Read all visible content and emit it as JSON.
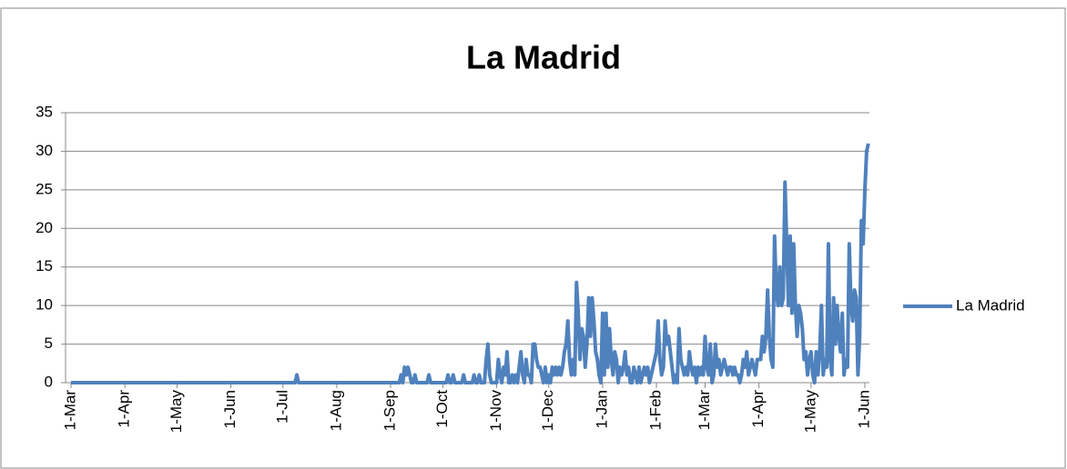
{
  "chart_data": {
    "type": "line",
    "title": "La Madrid",
    "categories": [
      "1-Mar",
      null,
      null,
      null,
      null,
      null,
      null,
      null,
      null,
      null,
      null,
      null,
      null,
      null,
      null,
      null,
      null,
      null,
      null,
      null,
      null,
      null,
      null,
      null,
      null,
      null,
      null,
      null,
      null,
      null,
      null,
      "1-Apr",
      null,
      null,
      null,
      null,
      null,
      null,
      null,
      null,
      null,
      null,
      null,
      null,
      null,
      null,
      null,
      null,
      null,
      null,
      null,
      null,
      null,
      null,
      null,
      null,
      null,
      null,
      null,
      null,
      null,
      "1-May",
      null,
      null,
      null,
      null,
      null,
      null,
      null,
      null,
      null,
      null,
      null,
      null,
      null,
      null,
      null,
      null,
      null,
      null,
      null,
      null,
      null,
      null,
      null,
      null,
      null,
      null,
      null,
      null,
      null,
      null,
      "1-Jun",
      null,
      null,
      null,
      null,
      null,
      null,
      null,
      null,
      null,
      null,
      null,
      null,
      null,
      null,
      null,
      null,
      null,
      null,
      null,
      null,
      null,
      null,
      null,
      null,
      null,
      null,
      null,
      null,
      null,
      "1-Jul",
      null,
      null,
      null,
      null,
      null,
      null,
      null,
      null,
      null,
      null,
      null,
      null,
      null,
      null,
      null,
      null,
      null,
      null,
      null,
      null,
      null,
      null,
      null,
      null,
      null,
      null,
      null,
      null,
      null,
      null,
      "1-Aug",
      null,
      null,
      null,
      null,
      null,
      null,
      null,
      null,
      null,
      null,
      null,
      null,
      null,
      null,
      null,
      null,
      null,
      null,
      null,
      null,
      null,
      null,
      null,
      null,
      null,
      null,
      null,
      null,
      null,
      null,
      "1-Sep",
      null,
      null,
      null,
      null,
      null,
      null,
      null,
      null,
      null,
      null,
      null,
      null,
      null,
      null,
      null,
      null,
      null,
      null,
      null,
      null,
      null,
      null,
      null,
      null,
      null,
      null,
      null,
      null,
      null,
      "1-Oct",
      null,
      null,
      null,
      null,
      null,
      null,
      null,
      null,
      null,
      null,
      null,
      null,
      null,
      null,
      null,
      null,
      null,
      null,
      null,
      null,
      null,
      null,
      null,
      null,
      null,
      null,
      null,
      null,
      null,
      null,
      "1-Nov",
      null,
      null,
      null,
      null,
      null,
      null,
      null,
      null,
      null,
      null,
      null,
      null,
      null,
      null,
      null,
      null,
      null,
      null,
      null,
      null,
      null,
      null,
      null,
      null,
      null,
      null,
      null,
      null,
      null,
      "1-Dec",
      null,
      null,
      null,
      null,
      null,
      null,
      null,
      null,
      null,
      null,
      null,
      null,
      null,
      null,
      null,
      null,
      null,
      null,
      null,
      null,
      null,
      null,
      null,
      null,
      null,
      null,
      null,
      null,
      null,
      null,
      "1-Jan",
      null,
      null,
      null,
      null,
      null,
      null,
      null,
      null,
      null,
      null,
      null,
      null,
      null,
      null,
      null,
      null,
      null,
      null,
      null,
      null,
      null,
      null,
      null,
      null,
      null,
      null,
      null,
      null,
      null,
      null,
      "1-Feb",
      null,
      null,
      null,
      null,
      null,
      null,
      null,
      null,
      null,
      null,
      null,
      null,
      null,
      null,
      null,
      null,
      null,
      null,
      null,
      null,
      null,
      null,
      null,
      null,
      null,
      null,
      null,
      "1-Mar",
      null,
      null,
      null,
      null,
      null,
      null,
      null,
      null,
      null,
      null,
      null,
      null,
      null,
      null,
      null,
      null,
      null,
      null,
      null,
      null,
      null,
      null,
      null,
      null,
      null,
      null,
      null,
      null,
      null,
      null,
      "1-Apr",
      null,
      null,
      null,
      null,
      null,
      null,
      null,
      null,
      null,
      null,
      null,
      null,
      null,
      null,
      null,
      null,
      null,
      null,
      null,
      null,
      null,
      null,
      null,
      null,
      null,
      null,
      null,
      null,
      null,
      "1-May",
      null,
      null,
      null,
      null,
      null,
      null,
      null,
      null,
      null,
      null,
      null,
      null,
      null,
      null,
      null,
      null,
      null,
      null,
      null,
      null,
      null,
      null,
      null,
      null,
      null,
      null,
      null,
      null,
      null,
      null,
      "1-Jun",
      null,
      null
    ],
    "series": [
      {
        "name": "La Madrid",
        "color": "#4f81bd",
        "values": [
          0,
          0,
          0,
          0,
          0,
          0,
          0,
          0,
          0,
          0,
          0,
          0,
          0,
          0,
          0,
          0,
          0,
          0,
          0,
          0,
          0,
          0,
          0,
          0,
          0,
          0,
          0,
          0,
          0,
          0,
          0,
          0,
          0,
          0,
          0,
          0,
          0,
          0,
          0,
          0,
          0,
          0,
          0,
          0,
          0,
          0,
          0,
          0,
          0,
          0,
          0,
          0,
          0,
          0,
          0,
          0,
          0,
          0,
          0,
          0,
          0,
          0,
          0,
          0,
          0,
          0,
          0,
          0,
          0,
          0,
          0,
          0,
          0,
          0,
          0,
          0,
          0,
          0,
          0,
          0,
          0,
          0,
          0,
          0,
          0,
          0,
          0,
          0,
          0,
          0,
          0,
          0,
          0,
          0,
          0,
          0,
          0,
          0,
          0,
          0,
          0,
          0,
          0,
          0,
          0,
          0,
          0,
          0,
          0,
          0,
          0,
          0,
          0,
          0,
          0,
          0,
          0,
          0,
          0,
          0,
          0,
          0,
          0,
          0,
          0,
          0,
          0,
          0,
          0,
          0,
          1,
          0,
          0,
          0,
          0,
          0,
          0,
          0,
          0,
          0,
          0,
          0,
          0,
          0,
          0,
          0,
          0,
          0,
          0,
          0,
          0,
          0,
          0,
          0,
          0,
          0,
          0,
          0,
          0,
          0,
          0,
          0,
          0,
          0,
          0,
          0,
          0,
          0,
          0,
          0,
          0,
          0,
          0,
          0,
          0,
          0,
          0,
          0,
          0,
          0,
          0,
          0,
          0,
          0,
          0,
          0,
          0,
          0,
          0,
          0,
          1,
          0,
          2,
          1,
          2,
          1,
          0,
          0,
          1,
          0,
          0,
          0,
          0,
          0,
          0,
          0,
          1,
          0,
          0,
          0,
          0,
          0,
          0,
          0,
          0,
          0,
          0,
          1,
          0,
          0,
          1,
          0,
          0,
          0,
          0,
          0,
          1,
          0,
          0,
          0,
          0,
          0,
          1,
          0,
          0,
          1,
          0,
          0,
          0,
          3,
          5,
          1,
          0,
          0,
          0,
          0,
          3,
          1,
          0,
          2,
          1,
          4,
          0,
          0,
          1,
          0,
          1,
          0,
          2,
          4,
          1,
          0,
          3,
          1,
          1,
          0,
          5,
          5,
          3,
          2,
          2,
          1,
          0,
          2,
          0,
          1,
          0,
          2,
          1,
          2,
          1,
          2,
          1,
          2,
          4,
          5,
          8,
          3,
          1,
          3,
          1,
          13,
          9,
          3,
          7,
          6,
          2,
          5,
          11,
          6,
          11,
          8,
          4,
          3,
          1,
          0,
          9,
          1,
          9,
          2,
          7,
          3,
          1,
          4,
          3,
          0,
          2,
          1,
          2,
          4,
          1,
          2,
          0,
          0,
          2,
          1,
          0,
          2,
          0,
          1,
          2,
          1,
          2,
          0,
          1,
          2,
          3,
          4,
          8,
          3,
          1,
          2,
          8,
          5,
          6,
          4,
          2,
          0,
          1,
          0,
          7,
          3,
          2,
          1,
          2,
          1,
          4,
          2,
          1,
          2,
          0,
          2,
          1,
          2,
          1,
          6,
          2,
          1,
          5,
          0,
          1,
          5,
          2,
          3,
          1,
          2,
          3,
          2,
          1,
          2,
          2,
          1,
          2,
          1,
          1,
          0,
          1,
          3,
          2,
          4,
          1,
          2,
          3,
          2,
          1,
          3,
          3,
          3,
          6,
          4,
          6,
          12,
          6,
          3,
          2,
          19,
          12,
          10,
          15,
          10,
          11,
          26,
          18,
          10,
          19,
          9,
          18,
          10,
          6,
          10,
          9,
          7,
          3,
          4,
          1,
          3,
          4,
          1,
          0,
          4,
          1,
          4,
          10,
          1,
          3,
          2,
          18,
          3,
          1,
          11,
          5,
          10,
          6,
          4,
          9,
          1,
          3,
          2,
          18,
          10,
          8,
          12,
          11,
          1,
          6,
          21,
          18,
          25,
          30,
          31
        ]
      }
    ],
    "ylim": [
      0,
      35
    ],
    "yticks": [
      0,
      5,
      10,
      15,
      20,
      25,
      30,
      35
    ],
    "grid": true,
    "legend": "right"
  }
}
